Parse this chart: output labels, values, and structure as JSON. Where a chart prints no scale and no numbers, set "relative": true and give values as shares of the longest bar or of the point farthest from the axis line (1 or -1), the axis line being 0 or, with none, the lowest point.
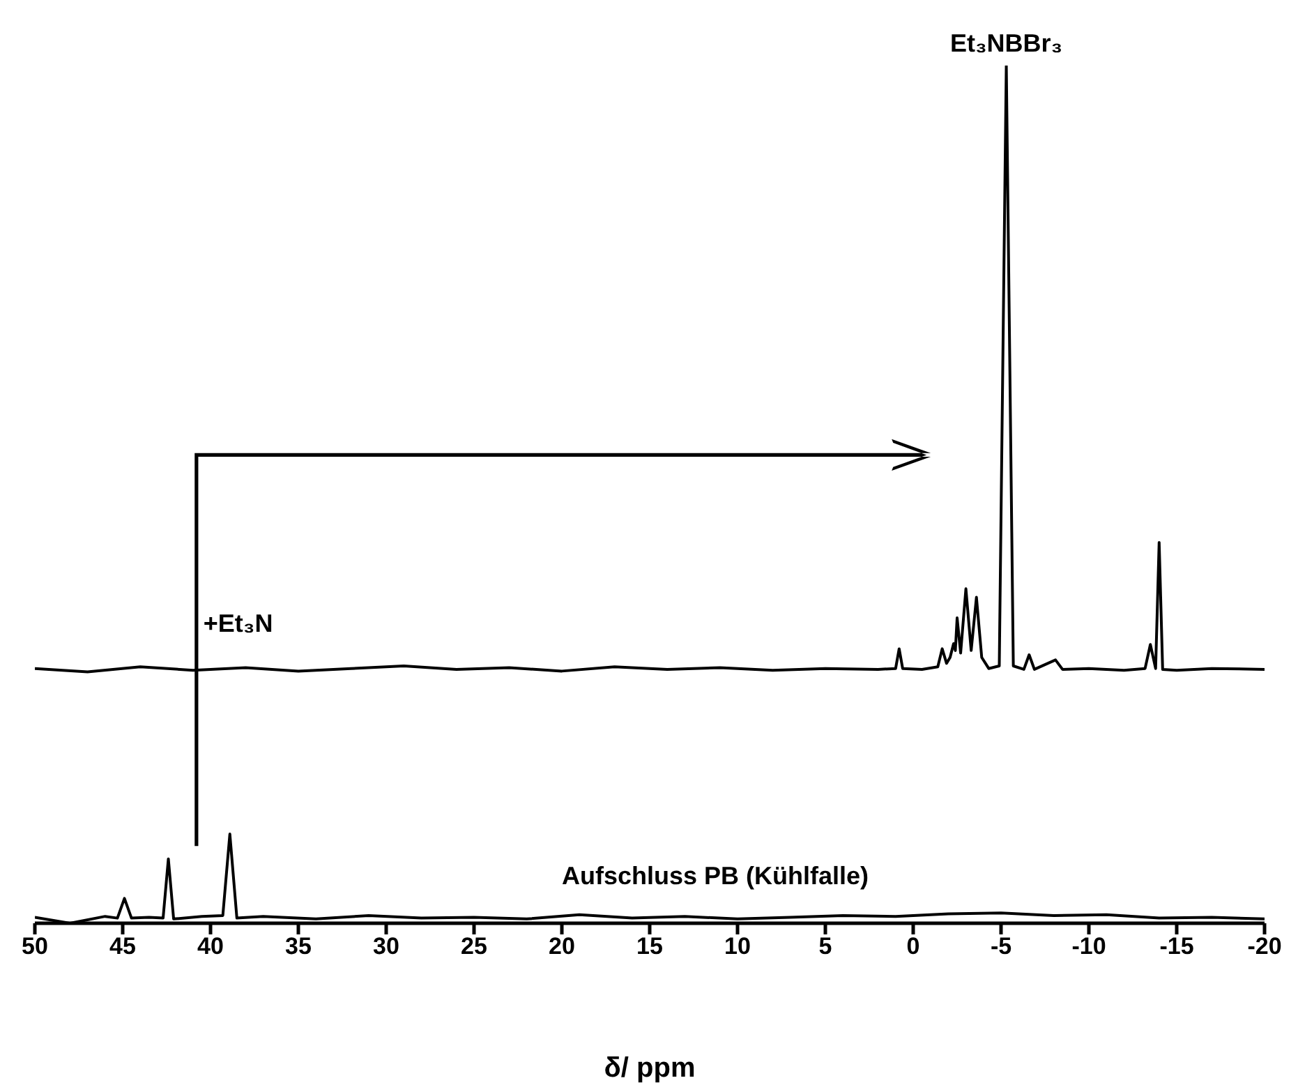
{
  "chart_data": {
    "type": "line",
    "relative": true,
    "xlabel": "δ/ ppm",
    "xlim": [
      50,
      -20
    ],
    "xticks": [
      50,
      45,
      40,
      35,
      30,
      25,
      20,
      15,
      10,
      5,
      0,
      -5,
      -10,
      -15,
      -20
    ],
    "marker": "none",
    "line_style": "solid",
    "tick_labels": "x",
    "annotations": [
      {
        "text": "Et₃NBBr₃",
        "x": -5.3,
        "y": 1
      },
      "+Et₃N",
      "Aufschluss PB (Kühlfalle)"
    ],
    "series": [
      {
        "color": "#000000",
        "x": [
          50,
          47,
          44,
          41,
          38,
          35,
          32,
          29,
          26,
          23,
          20,
          17,
          14,
          11,
          8,
          5,
          2,
          1.0,
          0.8,
          0.6,
          -0.5,
          -1.4,
          -1.65,
          -1.9,
          -2.1,
          -2.3,
          -2.4,
          -2.5,
          -2.7,
          -3.0,
          -3.3,
          -3.6,
          -3.9,
          -4.3,
          -4.9,
          -5.3,
          -5.7,
          -6.3,
          -6.6,
          -6.9,
          -8.1,
          -8.5,
          -10,
          -12,
          -13.2,
          -13.5,
          -13.8,
          -14.0,
          -14.2,
          -15,
          -17,
          -20
        ],
        "values": [
          0.297,
          0.293,
          0.299,
          0.295,
          0.298,
          0.294,
          0.297,
          0.3,
          0.296,
          0.298,
          0.294,
          0.299,
          0.296,
          0.298,
          0.295,
          0.297,
          0.296,
          0.297,
          0.32,
          0.297,
          0.296,
          0.299,
          0.32,
          0.303,
          0.31,
          0.326,
          0.318,
          0.356,
          0.315,
          0.39,
          0.318,
          0.38,
          0.31,
          0.297,
          0.3,
          1.0,
          0.3,
          0.296,
          0.313,
          0.296,
          0.307,
          0.296,
          0.297,
          0.295,
          0.297,
          0.325,
          0.297,
          0.444,
          0.296,
          0.295,
          0.297,
          0.296
        ]
      },
      {
        "color": "#000000",
        "x": [
          50,
          48,
          46,
          45.3,
          44.9,
          44.5,
          43.5,
          42.7,
          42.4,
          42.1,
          40.5,
          39.3,
          38.9,
          38.5,
          37,
          34,
          31,
          28,
          25,
          22,
          19,
          16,
          13,
          10,
          7,
          4,
          1,
          -2,
          -5,
          -8,
          -11,
          -14,
          -17,
          -20
        ],
        "values": [
          0.007,
          0.0,
          0.008,
          0.006,
          0.029,
          0.006,
          0.007,
          0.006,
          0.075,
          0.005,
          0.008,
          0.009,
          0.104,
          0.006,
          0.008,
          0.005,
          0.009,
          0.006,
          0.007,
          0.005,
          0.01,
          0.006,
          0.008,
          0.005,
          0.007,
          0.009,
          0.008,
          0.011,
          0.012,
          0.009,
          0.01,
          0.006,
          0.007,
          0.005
        ]
      }
    ]
  }
}
